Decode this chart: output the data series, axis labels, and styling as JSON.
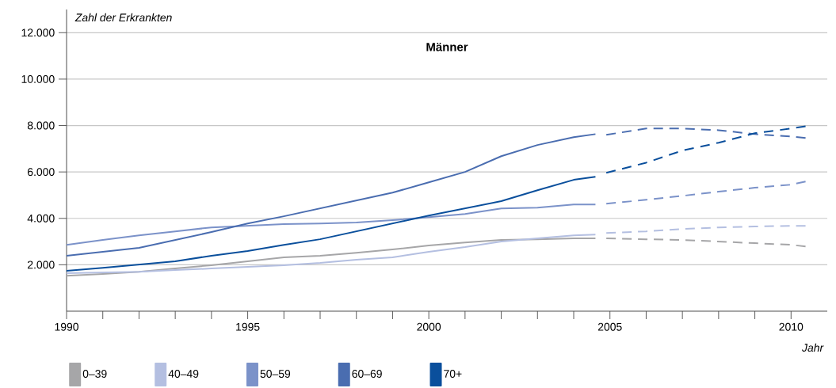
{
  "chart_data": {
    "type": "line",
    "title": "Männer",
    "ylabel": "Zahl der Erkrankten",
    "xlabel": "Jahr",
    "xlim": [
      1990,
      2011
    ],
    "ylim": [
      0,
      13000
    ],
    "xticks": [
      1990,
      {
        "value": 1991,
        "label": null
      },
      {
        "value": 1992,
        "label": null
      },
      {
        "value": 1993,
        "label": null
      },
      {
        "value": 1994,
        "label": null
      },
      1995,
      {
        "value": 1996,
        "label": null
      },
      {
        "value": 1997,
        "label": null
      },
      {
        "value": 1998,
        "label": null
      },
      {
        "value": 1999,
        "label": null
      },
      2000,
      {
        "value": 2001,
        "label": null
      },
      {
        "value": 2002,
        "label": null
      },
      {
        "value": 2003,
        "label": null
      },
      {
        "value": 2004,
        "label": null
      },
      2005,
      {
        "value": 2006,
        "label": null
      },
      {
        "value": 2007,
        "label": null
      },
      {
        "value": 2008,
        "label": null
      },
      {
        "value": 2009,
        "label": null
      },
      2010
    ],
    "yticks": [
      {
        "value": 2000,
        "label": "2.000"
      },
      {
        "value": 4000,
        "label": "4.000"
      },
      {
        "value": 6000,
        "label": "6.000"
      },
      {
        "value": 8000,
        "label": "8.000"
      },
      {
        "value": 10000,
        "label": "10.000"
      },
      {
        "value": 12000,
        "label": "12.000"
      }
    ],
    "grid": "y",
    "legend": "bottom",
    "line_style": "solid",
    "series": [
      {
        "name": "0–39",
        "color": "#a6a6a8",
        "x": [
          1990,
          1991,
          1992,
          1993,
          1994,
          1995,
          1996,
          1997,
          1998,
          1999,
          2000,
          2001,
          2002,
          2003,
          2004,
          2004.6
        ],
        "values": [
          1530,
          1600,
          1700,
          1840,
          1980,
          2150,
          2320,
          2390,
          2520,
          2660,
          2830,
          2960,
          3070,
          3100,
          3140,
          3140
        ]
      },
      {
        "color": "#a6a6a8",
        "line_style": "dashed",
        "x": [
          2004.9,
          2006,
          2007,
          2008,
          2009,
          2010,
          2010.4
        ],
        "values": [
          3140,
          3100,
          3070,
          3000,
          2930,
          2860,
          2790
        ]
      },
      {
        "name": "40–49",
        "color": "#b4bfe1",
        "x": [
          1990,
          1991,
          1992,
          1993,
          1994,
          1995,
          1996,
          1997,
          1998,
          1999,
          2000,
          2001,
          2002,
          2003,
          2004,
          2004.6
        ],
        "values": [
          1640,
          1670,
          1700,
          1770,
          1840,
          1910,
          1980,
          2080,
          2220,
          2320,
          2560,
          2760,
          3000,
          3140,
          3270,
          3300
        ]
      },
      {
        "color": "#b4bfe1",
        "line_style": "dashed",
        "x": [
          2004.9,
          2006,
          2007,
          2008,
          2009,
          2010,
          2010.4
        ],
        "values": [
          3370,
          3440,
          3540,
          3610,
          3650,
          3680,
          3680
        ]
      },
      {
        "name": "50–59",
        "color": "#7b92c9",
        "x": [
          1990,
          1991,
          1992,
          1993,
          1994,
          1995,
          1996,
          1997,
          1998,
          1999,
          2000,
          2001,
          2002,
          2003,
          2004,
          2004.6
        ],
        "values": [
          2860,
          3070,
          3270,
          3440,
          3610,
          3680,
          3750,
          3780,
          3820,
          3920,
          4050,
          4190,
          4430,
          4460,
          4600,
          4600
        ]
      },
      {
        "color": "#7b92c9",
        "line_style": "dashed",
        "x": [
          2004.9,
          2006,
          2007,
          2008,
          2009,
          2010,
          2010.4
        ],
        "values": [
          4630,
          4800,
          4970,
          5150,
          5320,
          5450,
          5590
        ]
      },
      {
        "name": "60–69",
        "color": "#4a6db0",
        "x": [
          1990,
          1991,
          1992,
          1993,
          1994,
          1995,
          1996,
          1997,
          1998,
          1999,
          2000,
          2001,
          2002,
          2003,
          2004,
          2004.6
        ],
        "values": [
          2390,
          2560,
          2730,
          3070,
          3410,
          3780,
          4090,
          4430,
          4770,
          5110,
          5550,
          6000,
          6680,
          7160,
          7500,
          7630
        ]
      },
      {
        "color": "#4a6db0",
        "line_style": "dashed",
        "x": [
          2004.9,
          2006,
          2007,
          2008,
          2009,
          2010,
          2010.4
        ],
        "values": [
          7600,
          7870,
          7870,
          7800,
          7630,
          7530,
          7460
        ]
      },
      {
        "name": "70+",
        "color": "#0a4f9c",
        "x": [
          1990,
          1991,
          1992,
          1993,
          1994,
          1995,
          1996,
          1997,
          1998,
          1999,
          2000,
          2001,
          2002,
          2003,
          2004,
          2004.6
        ],
        "values": [
          1740,
          1870,
          2010,
          2150,
          2390,
          2590,
          2860,
          3100,
          3440,
          3780,
          4120,
          4430,
          4740,
          5210,
          5660,
          5790
        ]
      },
      {
        "color": "#0a4f9c",
        "line_style": "dashed",
        "x": [
          2004.9,
          2006,
          2007,
          2008,
          2009,
          2010,
          2010.4
        ],
        "values": [
          5960,
          6400,
          6920,
          7260,
          7670,
          7870,
          7970
        ]
      }
    ]
  }
}
